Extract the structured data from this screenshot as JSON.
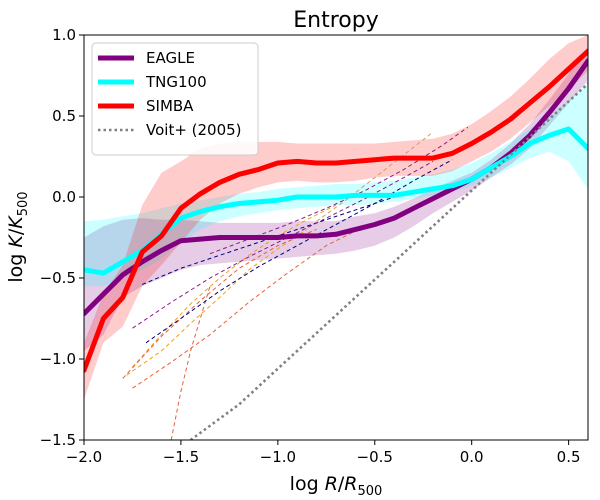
{
  "chart_data": {
    "type": "line",
    "title": "Entropy",
    "xlabel_main": "log ",
    "xlabel_var": "R",
    "xlabel_sep": "/",
    "xlabel_base": "R",
    "xlabel_sub": "500",
    "ylabel_main": "log ",
    "ylabel_var": "K",
    "ylabel_sep": "/",
    "ylabel_base": "K",
    "ylabel_sub": "500",
    "xlim": [
      -2.0,
      0.6
    ],
    "ylim": [
      -1.5,
      1.0
    ],
    "xticks": [
      -2.0,
      -1.5,
      -1.0,
      -0.5,
      0.0,
      0.5
    ],
    "xtick_labels": [
      "−2.0",
      "−1.5",
      "−1.0",
      "−0.5",
      "0.0",
      "0.5"
    ],
    "yticks": [
      -1.5,
      -1.0,
      -0.5,
      0.0,
      0.5,
      1.0
    ],
    "ytick_labels": [
      "−1.5",
      "−1.0",
      "−0.5",
      "0.0",
      "0.5",
      "1.0"
    ],
    "legend_position": "top-left",
    "series": [
      {
        "name": "EAGLE",
        "color": "#800080",
        "style": "solid",
        "x": [
          -2.0,
          -1.9,
          -1.8,
          -1.7,
          -1.6,
          -1.5,
          -1.4,
          -1.3,
          -1.2,
          -1.1,
          -1.0,
          -0.9,
          -0.8,
          -0.7,
          -0.6,
          -0.5,
          -0.4,
          -0.3,
          -0.2,
          -0.1,
          0.0,
          0.1,
          0.2,
          0.3,
          0.4,
          0.5,
          0.6
        ],
        "y": [
          -0.72,
          -0.6,
          -0.48,
          -0.4,
          -0.33,
          -0.27,
          -0.26,
          -0.25,
          -0.25,
          -0.25,
          -0.25,
          -0.24,
          -0.24,
          -0.23,
          -0.2,
          -0.17,
          -0.13,
          -0.07,
          -0.01,
          0.05,
          0.11,
          0.18,
          0.27,
          0.38,
          0.52,
          0.67,
          0.84
        ],
        "band_upper": [
          -0.25,
          -0.18,
          -0.14,
          -0.13,
          -0.14,
          -0.14,
          -0.15,
          -0.16,
          -0.16,
          -0.16,
          -0.16,
          -0.15,
          -0.15,
          -0.15,
          -0.12,
          -0.1,
          -0.06,
          -0.01,
          0.05,
          0.1,
          0.15,
          0.23,
          0.33,
          0.45,
          0.6,
          0.76,
          0.93
        ],
        "band_lower": [
          -0.95,
          -0.85,
          -0.62,
          -0.55,
          -0.5,
          -0.45,
          -0.42,
          -0.41,
          -0.4,
          -0.39,
          -0.38,
          -0.37,
          -0.36,
          -0.35,
          -0.33,
          -0.3,
          -0.25,
          -0.18,
          -0.1,
          -0.03,
          0.04,
          0.12,
          0.2,
          0.3,
          0.44,
          0.58,
          0.72
        ]
      },
      {
        "name": "TNG100",
        "color": "#00ffff",
        "style": "solid",
        "x": [
          -2.0,
          -1.9,
          -1.8,
          -1.7,
          -1.6,
          -1.5,
          -1.4,
          -1.3,
          -1.2,
          -1.1,
          -1.0,
          -0.9,
          -0.8,
          -0.7,
          -0.6,
          -0.5,
          -0.4,
          -0.3,
          -0.2,
          -0.1,
          0.0,
          0.1,
          0.2,
          0.3,
          0.4,
          0.5,
          0.6
        ],
        "y": [
          -0.45,
          -0.47,
          -0.4,
          -0.33,
          -0.23,
          -0.13,
          -0.09,
          -0.06,
          -0.04,
          -0.03,
          -0.02,
          0.0,
          0.0,
          0.0,
          0.01,
          0.01,
          0.01,
          0.03,
          0.05,
          0.07,
          0.11,
          0.18,
          0.25,
          0.33,
          0.38,
          0.42,
          0.3
        ],
        "band_upper": [
          -0.15,
          -0.14,
          -0.12,
          -0.1,
          -0.07,
          -0.04,
          -0.02,
          0.0,
          0.02,
          0.03,
          0.05,
          0.06,
          0.07,
          0.08,
          0.08,
          0.09,
          0.1,
          0.12,
          0.14,
          0.17,
          0.21,
          0.27,
          0.34,
          0.42,
          0.5,
          0.6,
          0.7
        ],
        "band_lower": [
          -0.55,
          -0.55,
          -0.5,
          -0.45,
          -0.38,
          -0.28,
          -0.2,
          -0.15,
          -0.12,
          -0.1,
          -0.08,
          -0.07,
          -0.06,
          -0.05,
          -0.05,
          -0.04,
          -0.03,
          -0.01,
          0.01,
          0.03,
          0.07,
          0.12,
          0.18,
          0.24,
          0.28,
          0.22,
          0.05
        ]
      },
      {
        "name": "SIMBA",
        "color": "#ff0000",
        "style": "solid",
        "x": [
          -2.0,
          -1.9,
          -1.8,
          -1.7,
          -1.6,
          -1.5,
          -1.4,
          -1.3,
          -1.2,
          -1.1,
          -1.0,
          -0.9,
          -0.8,
          -0.7,
          -0.6,
          -0.5,
          -0.4,
          -0.3,
          -0.2,
          -0.1,
          0.0,
          0.1,
          0.2,
          0.3,
          0.4,
          0.5,
          0.6
        ],
        "y": [
          -1.07,
          -0.75,
          -0.62,
          -0.34,
          -0.24,
          -0.07,
          0.02,
          0.09,
          0.14,
          0.17,
          0.21,
          0.22,
          0.21,
          0.21,
          0.22,
          0.23,
          0.24,
          0.24,
          0.24,
          0.27,
          0.33,
          0.4,
          0.48,
          0.58,
          0.68,
          0.79,
          0.9
        ],
        "band_upper": [
          -0.9,
          -0.6,
          -0.42,
          -0.05,
          0.15,
          0.22,
          0.3,
          0.33,
          0.34,
          0.34,
          0.34,
          0.33,
          0.33,
          0.33,
          0.33,
          0.33,
          0.34,
          0.35,
          0.36,
          0.39,
          0.45,
          0.53,
          0.62,
          0.73,
          0.85,
          0.95,
          1.0
        ],
        "band_lower": [
          -1.25,
          -0.9,
          -0.8,
          -0.55,
          -0.42,
          -0.28,
          -0.14,
          -0.04,
          0.02,
          0.06,
          0.09,
          0.1,
          0.09,
          0.09,
          0.1,
          0.12,
          0.13,
          0.13,
          0.13,
          0.16,
          0.22,
          0.28,
          0.36,
          0.46,
          0.56,
          0.66,
          0.78
        ]
      },
      {
        "name": "Voit+ (2005)",
        "color": "#808080",
        "style": "dotted",
        "x": [
          -1.45,
          -1.2,
          -1.0,
          -0.8,
          -0.6,
          -0.4,
          -0.2,
          0.0,
          0.2,
          0.4,
          0.6
        ],
        "y": [
          -1.5,
          -1.28,
          -1.06,
          -0.84,
          -0.62,
          -0.4,
          -0.18,
          0.04,
          0.26,
          0.48,
          0.7
        ]
      }
    ],
    "dashed_lines": [
      {
        "color": "#f0a020",
        "x": [
          -1.78,
          -1.6,
          -1.45,
          -1.3,
          -1.15,
          -1.0,
          -0.85
        ],
        "y": [
          -1.1,
          -0.95,
          -0.78,
          -0.62,
          -0.45,
          -0.32,
          -0.2
        ]
      },
      {
        "color": "#f0a020",
        "x": [
          -1.75,
          -1.6,
          -1.45,
          -1.3,
          -1.15,
          -1.0,
          -0.85,
          -0.7
        ],
        "y": [
          -1.05,
          -0.85,
          -0.66,
          -0.5,
          -0.36,
          -0.24,
          -0.14,
          -0.05
        ]
      },
      {
        "color": "#e8603c",
        "x": [
          -1.75,
          -1.55,
          -1.35,
          -1.15,
          -0.95,
          -0.75,
          -0.55
        ],
        "y": [
          -1.18,
          -1.02,
          -0.85,
          -0.65,
          -0.47,
          -0.3,
          -0.18
        ]
      },
      {
        "color": "#e8603c",
        "x": [
          -1.55,
          -1.5,
          -1.45,
          -1.4,
          -1.35
        ],
        "y": [
          -1.5,
          -1.2,
          -0.95,
          -0.75,
          -0.55
        ]
      },
      {
        "color": "#e8603c",
        "x": [
          -1.8,
          -1.6,
          -1.4,
          -1.2,
          -1.0,
          -0.8
        ],
        "y": [
          -1.12,
          -0.86,
          -0.64,
          -0.44,
          -0.3,
          -0.2
        ]
      },
      {
        "color": "#000080",
        "x": [
          -1.7,
          -1.5,
          -1.3,
          -1.1,
          -0.9,
          -0.7,
          -0.5,
          -0.3
        ],
        "y": [
          -0.54,
          -0.44,
          -0.36,
          -0.28,
          -0.2,
          -0.12,
          -0.04,
          0.04
        ]
      },
      {
        "color": "#000080",
        "x": [
          -1.68,
          -1.5,
          -1.3,
          -1.1,
          -0.9,
          -0.7,
          -0.5,
          -0.3,
          -0.1
        ],
        "y": [
          -0.9,
          -0.75,
          -0.58,
          -0.43,
          -0.3,
          -0.17,
          -0.04,
          0.1,
          0.23
        ]
      },
      {
        "color": "#8a1a8a",
        "x": [
          -1.75,
          -1.55,
          -1.35,
          -1.15,
          -0.95,
          -0.75,
          -0.55,
          -0.35,
          -0.2
        ],
        "y": [
          -0.81,
          -0.65,
          -0.5,
          -0.37,
          -0.25,
          -0.13,
          -0.01,
          0.12,
          0.22
        ]
      },
      {
        "color": "#8a1a8a",
        "x": [
          -1.35,
          -1.15,
          -0.95,
          -0.75,
          -0.55,
          -0.35,
          -0.15,
          -0.02
        ],
        "y": [
          -0.35,
          -0.26,
          -0.17,
          -0.07,
          0.04,
          0.17,
          0.32,
          0.43
        ]
      },
      {
        "color": "#d0a060",
        "x": [
          -0.8,
          -0.65,
          -0.5,
          -0.35,
          -0.2
        ],
        "y": [
          -0.15,
          -0.02,
          0.12,
          0.26,
          0.4
        ]
      }
    ]
  }
}
